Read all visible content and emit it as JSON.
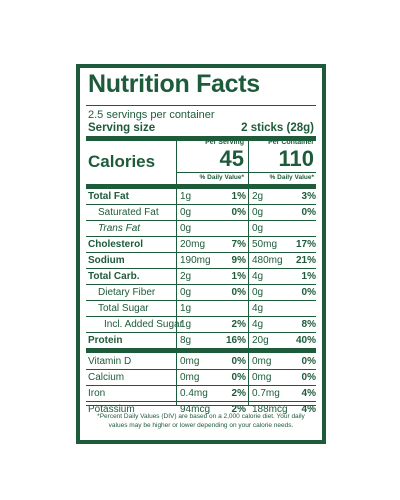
{
  "title": "Nutrition Facts",
  "servings_per_container": "2.5 servings per container",
  "serving_size_label": "Serving size",
  "serving_size_value": "2 sticks (28g)",
  "per_serving_header": "Per Serving",
  "per_container_header": "Per Container",
  "calories_label": "Calories",
  "calories_per_serving": "45",
  "calories_per_container": "110",
  "dv_header": "% Daily Value*",
  "rows": [
    {
      "label": "Total Fat",
      "style": "bold",
      "s_amt": "1g",
      "s_pct": "1%",
      "c_amt": "2g",
      "c_pct": "3%"
    },
    {
      "label": "Saturated Fat",
      "style": "indent",
      "s_amt": "0g",
      "s_pct": "0%",
      "c_amt": "0g",
      "c_pct": "0%"
    },
    {
      "label": "Trans Fat",
      "style": "indent-italic",
      "s_amt": "0g",
      "s_pct": "",
      "c_amt": "0g",
      "c_pct": ""
    },
    {
      "label": "Cholesterol",
      "style": "bold",
      "s_amt": "20mg",
      "s_pct": "7%",
      "c_amt": "50mg",
      "c_pct": "17%"
    },
    {
      "label": "Sodium",
      "style": "bold",
      "s_amt": "190mg",
      "s_pct": "9%",
      "c_amt": "480mg",
      "c_pct": "21%"
    },
    {
      "label": "Total Carb.",
      "style": "bold",
      "s_amt": "2g",
      "s_pct": "1%",
      "c_amt": "4g",
      "c_pct": "1%"
    },
    {
      "label": "Dietary Fiber",
      "style": "indent",
      "s_amt": "0g",
      "s_pct": "0%",
      "c_amt": "0g",
      "c_pct": "0%"
    },
    {
      "label": "Total Sugar",
      "style": "indent",
      "s_amt": "1g",
      "s_pct": "",
      "c_amt": "4g",
      "c_pct": ""
    },
    {
      "label": "Incl. Added Sugar",
      "style": "indent2",
      "s_amt": "1g",
      "s_pct": "2%",
      "c_amt": "4g",
      "c_pct": "8%"
    },
    {
      "label": "Protein",
      "style": "bold",
      "s_amt": "8g",
      "s_pct": "16%",
      "c_amt": "20g",
      "c_pct": "40%"
    },
    {
      "label": "Vitamin D",
      "style": "plain",
      "s_amt": "0mg",
      "s_pct": "0%",
      "c_amt": "0mg",
      "c_pct": "0%"
    },
    {
      "label": "Calcium",
      "style": "plain",
      "s_amt": "0mg",
      "s_pct": "0%",
      "c_amt": "0mg",
      "c_pct": "0%"
    },
    {
      "label": "Iron",
      "style": "plain",
      "s_amt": "0.4mg",
      "s_pct": "2%",
      "c_amt": "0.7mg",
      "c_pct": "4%"
    },
    {
      "label": "Potassium",
      "style": "plain",
      "s_amt": "94mcg",
      "s_pct": "2%",
      "c_amt": "188mcg",
      "c_pct": "4%"
    }
  ],
  "footnote": "*Percent Daily Values (DIV) are based on a 2,000 calorie diet. Your daily values may be higher or lower depending on your calorie needs.",
  "colors": {
    "ink": "#1e5b3a",
    "background": "#ffffff"
  }
}
